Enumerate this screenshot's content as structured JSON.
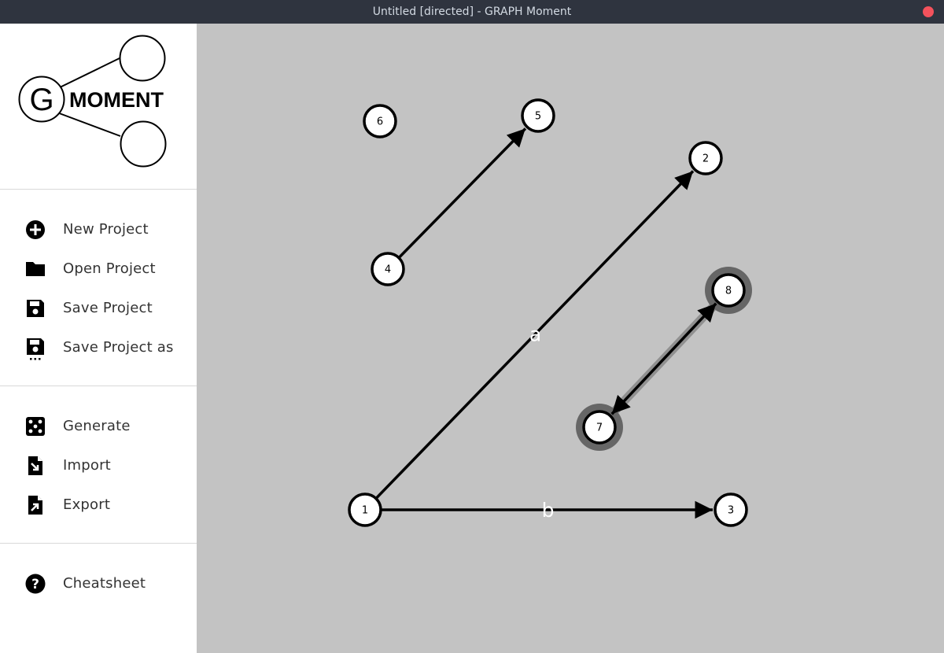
{
  "window": {
    "title": "Untitled [directed] - GRAPH Moment"
  },
  "logo": {
    "letter": "G",
    "word": "MOMENT"
  },
  "menu": {
    "groups": [
      [
        {
          "label": "New Project",
          "icon": "plus-circle-icon"
        },
        {
          "label": "Open Project",
          "icon": "folder-icon"
        },
        {
          "label": "Save Project",
          "icon": "floppy-disk-icon"
        },
        {
          "label": "Save Project as",
          "icon": "floppy-disk-dots-icon"
        }
      ],
      [
        {
          "label": "Generate",
          "icon": "dice-icon"
        },
        {
          "label": "Import",
          "icon": "file-import-icon"
        },
        {
          "label": "Export",
          "icon": "file-export-icon"
        }
      ],
      [
        {
          "label": "Cheatsheet",
          "icon": "question-circle-icon"
        }
      ]
    ]
  },
  "graph": {
    "directed": true,
    "nodes": [
      {
        "id": "1",
        "label": "1",
        "selected": false
      },
      {
        "id": "2",
        "label": "2",
        "selected": false
      },
      {
        "id": "3",
        "label": "3",
        "selected": false
      },
      {
        "id": "4",
        "label": "4",
        "selected": false
      },
      {
        "id": "5",
        "label": "5",
        "selected": false
      },
      {
        "id": "6",
        "label": "6",
        "selected": false
      },
      {
        "id": "7",
        "label": "7",
        "selected": true
      },
      {
        "id": "8",
        "label": "8",
        "selected": true
      }
    ],
    "edges": [
      {
        "from": "1",
        "to": "2",
        "label": "a",
        "bidirectional": false,
        "selected": false
      },
      {
        "from": "1",
        "to": "3",
        "label": "b",
        "bidirectional": false,
        "selected": false
      },
      {
        "from": "4",
        "to": "5",
        "label": "",
        "bidirectional": false,
        "selected": false
      },
      {
        "from": "7",
        "to": "8",
        "label": "",
        "bidirectional": true,
        "selected": true
      }
    ],
    "colors": {
      "canvas": "#c3c3c3",
      "node_fill": "#ffffff",
      "stroke": "#000000",
      "selection": "#666666",
      "edge_label": "#ffffff"
    }
  }
}
